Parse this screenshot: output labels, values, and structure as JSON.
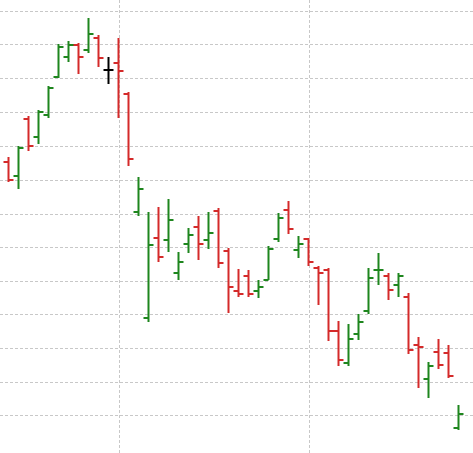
{
  "chart_data": {
    "type": "ohlc",
    "xlim": [
      -0.8,
      46.5
    ],
    "xticks": [
      11.1,
      30.1
    ],
    "ylim": [
      0,
      453
    ],
    "yticks": [
      38,
      71,
      105,
      139,
      172,
      206,
      239,
      273,
      307,
      341,
      375,
      409,
      442
    ],
    "grid": true,
    "open": [
      291,
      277,
      334,
      316,
      338,
      376,
      396,
      408,
      403,
      415,
      383,
      390,
      359,
      241,
      135,
      215,
      213,
      180,
      209,
      226,
      213,
      242,
      202,
      162,
      177,
      162,
      173,
      214,
      243,
      203,
      214,
      185,
      183,
      122,
      90,
      119,
      142,
      183,
      177,
      168,
      156,
      108,
      74,
      101,
      100,
      25
    ],
    "high": [
      296,
      307,
      337,
      343,
      367,
      409,
      412,
      410,
      435,
      418,
      396,
      415,
      361,
      276,
      241,
      246,
      254,
      201,
      225,
      237,
      241,
      245,
      205,
      184,
      183,
      173,
      207,
      240,
      252,
      217,
      215,
      187,
      185,
      132,
      129,
      139,
      185,
      200,
      180,
      180,
      160,
      116,
      91,
      114,
      108,
      48
    ],
    "low": [
      271,
      264,
      302,
      309,
      335,
      375,
      391,
      379,
      400,
      386,
      369,
      335,
      287,
      237,
      131,
      191,
      201,
      173,
      200,
      193,
      204,
      185,
      140,
      156,
      156,
      155,
      173,
      211,
      219,
      195,
      187,
      148,
      112,
      87,
      87,
      113,
      139,
      168,
      153,
      156,
      99,
      65,
      55,
      84,
      75,
      23
    ],
    "close": [
      273,
      305,
      307,
      341,
      365,
      406,
      408,
      396,
      419,
      395,
      383,
      382,
      294,
      264,
      208,
      196,
      233,
      191,
      218,
      209,
      220,
      190,
      166,
      159,
      159,
      166,
      204,
      235,
      224,
      209,
      191,
      180,
      122,
      93,
      114,
      131,
      175,
      183,
      163,
      177,
      103,
      106,
      87,
      88,
      77,
      39
    ],
    "colors": [
      "#d42a2a",
      "#1e861e",
      "#d42a2a",
      "#1e861e",
      "#1e861e",
      "#1e861e",
      "#1e861e",
      "#d42a2a",
      "#1e861e",
      "#d42a2a",
      "#000000",
      "#d42a2a",
      "#d42a2a",
      "#1e861e",
      "#1e861e",
      "#d42a2a",
      "#1e861e",
      "#1e861e",
      "#1e861e",
      "#d42a2a",
      "#1e861e",
      "#d42a2a",
      "#d42a2a",
      "#d42a2a",
      "#d42a2a",
      "#1e861e",
      "#1e861e",
      "#1e861e",
      "#d42a2a",
      "#1e861e",
      "#d42a2a",
      "#d42a2a",
      "#d42a2a",
      "#d42a2a",
      "#1e861e",
      "#1e861e",
      "#1e861e",
      "#1e861e",
      "#d42a2a",
      "#1e861e",
      "#d42a2a",
      "#d42a2a",
      "#1e861e",
      "#d42a2a",
      "#d42a2a",
      "#1e861e"
    ]
  }
}
